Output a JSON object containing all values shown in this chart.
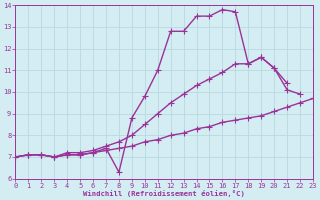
{
  "x": [
    0,
    1,
    2,
    3,
    4,
    5,
    6,
    7,
    8,
    9,
    10,
    11,
    12,
    13,
    14,
    15,
    16,
    17,
    18,
    19,
    20,
    21,
    22,
    23
  ],
  "line_top": [
    7.0,
    7.1,
    7.1,
    7.0,
    7.1,
    7.1,
    7.2,
    7.4,
    6.3,
    8.8,
    9.8,
    11.0,
    12.8,
    12.8,
    13.5,
    13.5,
    13.8,
    13.7,
    11.3,
    11.6,
    11.1,
    10.1,
    9.9,
    null
  ],
  "line_mid": [
    7.0,
    7.1,
    7.1,
    7.0,
    7.2,
    7.2,
    7.3,
    7.5,
    7.7,
    8.0,
    8.5,
    9.0,
    9.5,
    9.9,
    10.3,
    10.6,
    10.9,
    11.3,
    11.3,
    11.6,
    11.1,
    10.4,
    null,
    null
  ],
  "line_bot": [
    7.0,
    7.1,
    7.1,
    7.0,
    7.1,
    7.1,
    7.2,
    7.3,
    7.4,
    7.5,
    7.7,
    7.8,
    8.0,
    8.1,
    8.3,
    8.4,
    8.6,
    8.7,
    8.8,
    8.9,
    9.1,
    9.3,
    9.5,
    9.7
  ],
  "ylim": [
    6,
    14
  ],
  "xlim": [
    0,
    23
  ],
  "yticks": [
    6,
    7,
    8,
    9,
    10,
    11,
    12,
    13,
    14
  ],
  "xticks": [
    0,
    1,
    2,
    3,
    4,
    5,
    6,
    7,
    8,
    9,
    10,
    11,
    12,
    13,
    14,
    15,
    16,
    17,
    18,
    19,
    20,
    21,
    22,
    23
  ],
  "color": "#993399",
  "bg_color": "#d4edf2",
  "grid_color": "#b8d8e0",
  "xlabel": "Windchill (Refroidissement éolien,°C)",
  "marker": "+",
  "linewidth": 1.0,
  "markersize": 4
}
